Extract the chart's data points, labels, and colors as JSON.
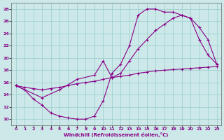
{
  "xlabel": "Windchill (Refroidissement éolien,°C)",
  "bg_color": "#cce8e8",
  "grid_color": "#99cccc",
  "line_color": "#880088",
  "xlim": [
    -0.5,
    23.5
  ],
  "ylim": [
    9,
    29
  ],
  "xticks": [
    0,
    1,
    2,
    3,
    4,
    5,
    6,
    7,
    8,
    9,
    10,
    11,
    12,
    13,
    14,
    15,
    16,
    17,
    18,
    19,
    20,
    21,
    22,
    23
  ],
  "yticks": [
    10,
    12,
    14,
    16,
    18,
    20,
    22,
    24,
    26,
    28
  ],
  "curve_a_x": [
    0,
    1,
    2,
    3,
    4,
    5,
    6,
    7,
    8,
    9,
    10,
    11,
    12,
    13,
    14,
    15,
    16,
    17,
    18,
    19,
    20,
    21,
    22,
    23
  ],
  "curve_a_y": [
    15.5,
    15.2,
    15.0,
    14.8,
    15.0,
    15.2,
    15.5,
    15.8,
    16.0,
    16.2,
    16.5,
    16.8,
    17.0,
    17.2,
    17.5,
    17.7,
    17.9,
    18.0,
    18.1,
    18.2,
    18.3,
    18.4,
    18.5,
    18.6
  ],
  "curve_b_x": [
    0,
    1,
    2,
    3,
    4,
    5,
    6,
    7,
    8,
    9,
    10,
    11,
    12,
    13,
    14,
    15,
    16,
    17,
    18,
    19,
    20,
    21,
    22,
    23
  ],
  "curve_b_y": [
    15.5,
    14.8,
    13.3,
    12.3,
    11.0,
    10.5,
    10.2,
    10.0,
    10.0,
    10.5,
    13.0,
    17.5,
    19.0,
    22.0,
    27.0,
    28.0,
    28.0,
    27.5,
    27.5,
    27.0,
    26.5,
    23.0,
    20.5,
    19.0
  ],
  "curve_c_x": [
    0,
    3,
    5,
    7,
    9,
    10,
    11,
    12,
    13,
    14,
    15,
    16,
    17,
    18,
    19,
    20,
    21,
    22,
    23
  ],
  "curve_c_y": [
    15.5,
    13.5,
    14.8,
    16.5,
    17.2,
    19.5,
    16.8,
    17.5,
    19.5,
    21.5,
    23.0,
    24.5,
    25.5,
    26.5,
    27.0,
    26.5,
    25.0,
    23.0,
    19.0
  ]
}
